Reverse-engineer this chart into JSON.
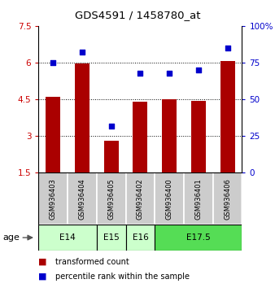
{
  "title": "GDS4591 / 1458780_at",
  "samples": [
    "GSM936403",
    "GSM936404",
    "GSM936405",
    "GSM936402",
    "GSM936400",
    "GSM936401",
    "GSM936406"
  ],
  "bar_values": [
    4.6,
    5.95,
    2.8,
    4.4,
    4.5,
    4.45,
    6.05
  ],
  "scatter_values": [
    75,
    82,
    32,
    68,
    68,
    70,
    85
  ],
  "ylim_left": [
    1.5,
    7.5
  ],
  "ylim_right": [
    0,
    100
  ],
  "yticks_left": [
    1.5,
    3.0,
    4.5,
    6.0,
    7.5
  ],
  "yticks_right": [
    0,
    25,
    50,
    75,
    100
  ],
  "ytick_labels_left": [
    "1.5",
    "3",
    "4.5",
    "6",
    "7.5"
  ],
  "ytick_labels_right": [
    "0",
    "25",
    "50",
    "75",
    "100%"
  ],
  "bar_color": "#aa0000",
  "scatter_color": "#0000cc",
  "age_groups": [
    {
      "label": "E14",
      "start": 0,
      "end": 2,
      "color": "#ccffcc"
    },
    {
      "label": "E15",
      "start": 2,
      "end": 3,
      "color": "#ccffcc"
    },
    {
      "label": "E16",
      "start": 3,
      "end": 4,
      "color": "#ccffcc"
    },
    {
      "label": "E17.5",
      "start": 4,
      "end": 7,
      "color": "#55dd55"
    }
  ],
  "legend_bar_label": "transformed count",
  "legend_scatter_label": "percentile rank within the sample",
  "bar_width": 0.5,
  "sample_box_color": "#cccccc",
  "age_label": "age"
}
